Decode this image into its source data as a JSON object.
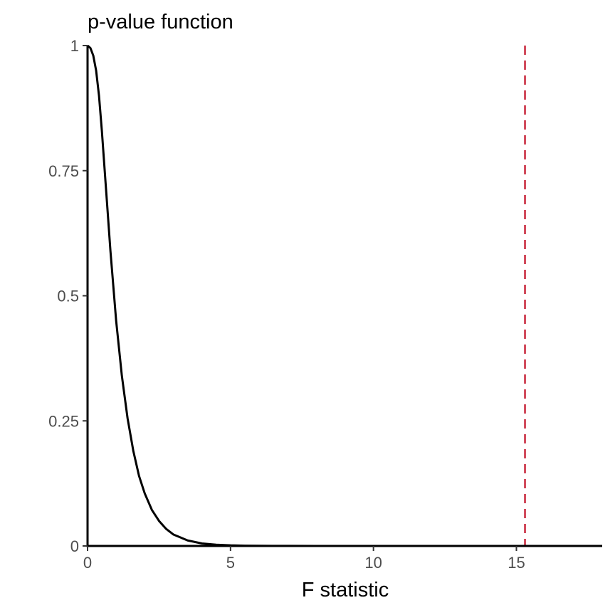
{
  "chart_data": {
    "type": "line",
    "title": "p-value function",
    "xlabel": "F statistic",
    "ylabel": "",
    "xlim": [
      0,
      18
    ],
    "ylim": [
      0,
      1
    ],
    "x_ticks": [
      0,
      5,
      10,
      15
    ],
    "x_tick_labels": [
      "0",
      "5",
      "10",
      "15"
    ],
    "y_ticks": [
      0,
      0.25,
      0.5,
      0.75,
      1
    ],
    "y_tick_labels": [
      "0",
      "0.25",
      "0.5",
      "0.75",
      "1"
    ],
    "grid": false,
    "legend": "none",
    "series": [
      {
        "color": "#000000",
        "x": [
          0,
          0.1,
          0.2,
          0.3,
          0.4,
          0.5,
          0.6,
          0.7,
          0.8,
          0.9,
          1.0,
          1.2,
          1.4,
          1.6,
          1.8,
          2.0,
          2.25,
          2.5,
          2.75,
          3.0,
          3.5,
          4.0,
          4.5,
          5.0,
          5.5,
          6.0,
          7.0,
          8.0,
          10.0,
          12.0,
          15.0,
          18.0
        ],
        "y": [
          1.0,
          0.995,
          0.98,
          0.95,
          0.9,
          0.83,
          0.75,
          0.67,
          0.59,
          0.52,
          0.45,
          0.34,
          0.255,
          0.19,
          0.14,
          0.105,
          0.072,
          0.05,
          0.034,
          0.023,
          0.011,
          0.005,
          0.0025,
          0.0012,
          0.0006,
          0.0003,
          0.0001,
          3e-05,
          0.0,
          0.0,
          0.0,
          0.0
        ]
      }
    ],
    "reference_line": {
      "orientation": "vertical",
      "x": 15.3,
      "style": "dashed",
      "color": "#d1495b"
    }
  }
}
